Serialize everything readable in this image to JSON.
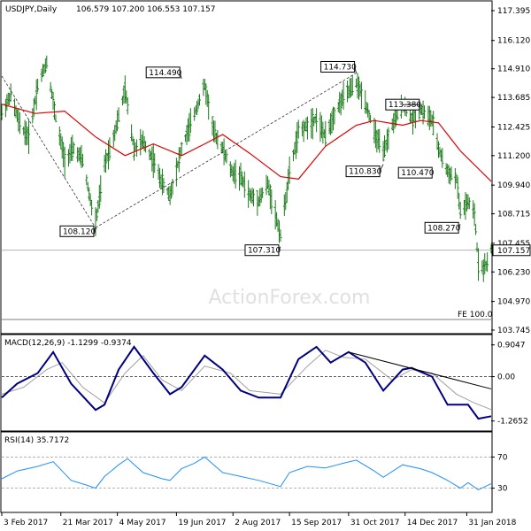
{
  "header": {
    "symbol": "USDJPY,Daily",
    "ohlc": "106.579 107.200 106.553 107.157"
  },
  "watermark": "ActionForex.com",
  "colors": {
    "ma": "#dd0000",
    "macd": "#000080",
    "signal": "#a0a0a0",
    "rsi": "#1e90ff",
    "bars": "#1a7a1a"
  },
  "chart_data": [
    {
      "type": "ohlc",
      "name": "price",
      "title": "USDJPY,Daily",
      "yticks": [
        "117.395",
        "116.120",
        "114.910",
        "113.685",
        "112.425",
        "111.200",
        "109.940",
        "108.715",
        "107.455",
        "106.230",
        "104.970",
        "103.745"
      ],
      "ylim": [
        103.745,
        117.395
      ],
      "current_price": "107.157",
      "fe_label": "FE 100.0",
      "fe_level": 104.2,
      "annotations": [
        {
          "label": "108.120",
          "x": "2017-04-17",
          "y": 108.12
        },
        {
          "label": "114.490",
          "x": "2017-06-23",
          "y": 114.49
        },
        {
          "label": "107.310",
          "x": "2017-09-08",
          "y": 107.31
        },
        {
          "label": "114.730",
          "x": "2017-11-06",
          "y": 114.73
        },
        {
          "label": "110.830",
          "x": "2017-11-27",
          "y": 110.83
        },
        {
          "label": "113.380",
          "x": "2017-12-12",
          "y": 113.38
        },
        {
          "label": "110.470",
          "x": "2018-01-04",
          "y": 110.47
        },
        {
          "label": "108.270",
          "x": "2018-01-26",
          "y": 108.27
        }
      ],
      "price_path": [
        [
          "2017-02-03",
          113.0
        ],
        [
          "2017-02-10",
          113.8
        ],
        [
          "2017-02-17",
          112.5
        ],
        [
          "2017-02-24",
          112.0
        ],
        [
          "2017-03-03",
          114.2
        ],
        [
          "2017-03-10",
          115.2
        ],
        [
          "2017-03-17",
          112.8
        ],
        [
          "2017-03-24",
          111.0
        ],
        [
          "2017-03-31",
          111.5
        ],
        [
          "2017-04-07",
          111.0
        ],
        [
          "2017-04-14",
          109.0
        ],
        [
          "2017-04-17",
          108.3
        ],
        [
          "2017-04-24",
          110.8
        ],
        [
          "2017-05-01",
          112.0
        ],
        [
          "2017-05-10",
          114.0
        ],
        [
          "2017-05-17",
          111.5
        ],
        [
          "2017-05-24",
          111.8
        ],
        [
          "2017-06-01",
          111.0
        ],
        [
          "2017-06-08",
          110.0
        ],
        [
          "2017-06-14",
          109.5
        ],
        [
          "2017-06-23",
          111.5
        ],
        [
          "2017-07-03",
          113.0
        ],
        [
          "2017-07-11",
          114.2
        ],
        [
          "2017-07-18",
          112.2
        ],
        [
          "2017-07-25",
          111.5
        ],
        [
          "2017-08-01",
          110.5
        ],
        [
          "2017-08-08",
          110.3
        ],
        [
          "2017-08-15",
          109.5
        ],
        [
          "2017-08-22",
          109.3
        ],
        [
          "2017-08-29",
          110.0
        ],
        [
          "2017-09-08",
          107.8
        ],
        [
          "2017-09-15",
          110.5
        ],
        [
          "2017-09-22",
          112.2
        ],
        [
          "2017-09-29",
          112.5
        ],
        [
          "2017-10-06",
          112.8
        ],
        [
          "2017-10-13",
          112.0
        ],
        [
          "2017-10-20",
          113.0
        ],
        [
          "2017-10-27",
          113.7
        ],
        [
          "2017-11-06",
          114.3
        ],
        [
          "2017-11-13",
          113.5
        ],
        [
          "2017-11-20",
          112.2
        ],
        [
          "2017-11-27",
          111.3
        ],
        [
          "2017-12-04",
          112.5
        ],
        [
          "2017-12-12",
          113.4
        ],
        [
          "2017-12-19",
          112.8
        ],
        [
          "2017-12-26",
          113.2
        ],
        [
          "2018-01-04",
          112.7
        ],
        [
          "2018-01-09",
          111.5
        ],
        [
          "2018-01-16",
          110.5
        ],
        [
          "2018-01-23",
          110.2
        ],
        [
          "2018-01-26",
          108.8
        ],
        [
          "2018-02-01",
          109.2
        ],
        [
          "2018-02-06",
          108.7
        ],
        [
          "2018-02-09",
          106.6
        ],
        [
          "2018-02-13",
          106.4
        ],
        [
          "2018-02-16",
          106.6
        ],
        [
          "2018-02-19",
          107.157
        ]
      ],
      "ma_path": [
        [
          "2017-02-03",
          113.4
        ],
        [
          "2017-03-01",
          113.0
        ],
        [
          "2017-03-24",
          113.1
        ],
        [
          "2017-04-17",
          112.0
        ],
        [
          "2017-05-10",
          111.2
        ],
        [
          "2017-06-01",
          111.7
        ],
        [
          "2017-06-23",
          111.2
        ],
        [
          "2017-07-11",
          111.7
        ],
        [
          "2017-07-25",
          112.1
        ],
        [
          "2017-08-15",
          111.3
        ],
        [
          "2017-09-08",
          110.3
        ],
        [
          "2017-09-22",
          110.2
        ],
        [
          "2017-10-13",
          111.6
        ],
        [
          "2017-11-06",
          112.5
        ],
        [
          "2017-11-20",
          112.7
        ],
        [
          "2017-12-12",
          112.5
        ],
        [
          "2017-12-26",
          112.7
        ],
        [
          "2018-01-09",
          112.6
        ],
        [
          "2018-01-26",
          111.4
        ],
        [
          "2018-02-19",
          110.1
        ]
      ],
      "trendlines": [
        {
          "from": [
            "2017-02-03",
            114.6
          ],
          "to": [
            "2017-04-17",
            108.12
          ]
        },
        {
          "from": [
            "2017-04-17",
            108.12
          ],
          "to": [
            "2017-11-06",
            114.73
          ]
        }
      ]
    },
    {
      "type": "line",
      "name": "macd",
      "title": "MACD(12,26,9)",
      "values_label": "-1.1299 -0.9374",
      "yticks": [
        "0.9047",
        "0.00",
        "-1.2652"
      ],
      "ylim": [
        -1.5,
        1.15
      ],
      "macd_path": [
        [
          "2017-02-03",
          -0.6
        ],
        [
          "2017-02-15",
          -0.2
        ],
        [
          "2017-03-03",
          0.1
        ],
        [
          "2017-03-15",
          0.7
        ],
        [
          "2017-03-29",
          -0.2
        ],
        [
          "2017-04-17",
          -0.95
        ],
        [
          "2017-04-24",
          -0.8
        ],
        [
          "2017-05-05",
          0.2
        ],
        [
          "2017-05-17",
          0.85
        ],
        [
          "2017-06-01",
          0.1
        ],
        [
          "2017-06-14",
          -0.5
        ],
        [
          "2017-06-23",
          -0.3
        ],
        [
          "2017-07-11",
          0.6
        ],
        [
          "2017-07-25",
          0.2
        ],
        [
          "2017-08-08",
          -0.4
        ],
        [
          "2017-08-22",
          -0.6
        ],
        [
          "2017-09-08",
          -0.6
        ],
        [
          "2017-09-22",
          0.5
        ],
        [
          "2017-10-06",
          0.85
        ],
        [
          "2017-10-17",
          0.4
        ],
        [
          "2017-10-31",
          0.7
        ],
        [
          "2017-11-13",
          0.4
        ],
        [
          "2017-11-27",
          -0.4
        ],
        [
          "2017-12-12",
          0.2
        ],
        [
          "2017-12-19",
          0.25
        ],
        [
          "2018-01-04",
          0.0
        ],
        [
          "2018-01-16",
          -0.8
        ],
        [
          "2018-01-23",
          -0.8
        ],
        [
          "2018-02-01",
          -0.8
        ],
        [
          "2018-02-09",
          -1.2
        ],
        [
          "2018-02-19",
          -1.13
        ]
      ],
      "signal_path": [
        [
          "2017-02-03",
          -0.5
        ],
        [
          "2017-02-20",
          -0.3
        ],
        [
          "2017-03-10",
          0.2
        ],
        [
          "2017-03-22",
          0.4
        ],
        [
          "2017-04-07",
          -0.3
        ],
        [
          "2017-04-24",
          -0.75
        ],
        [
          "2017-05-10",
          0.1
        ],
        [
          "2017-05-24",
          0.6
        ],
        [
          "2017-06-08",
          -0.1
        ],
        [
          "2017-06-23",
          -0.4
        ],
        [
          "2017-07-11",
          0.3
        ],
        [
          "2017-07-31",
          0.1
        ],
        [
          "2017-08-15",
          -0.4
        ],
        [
          "2017-09-08",
          -0.5
        ],
        [
          "2017-09-29",
          0.3
        ],
        [
          "2017-10-13",
          0.75
        ],
        [
          "2017-10-27",
          0.55
        ],
        [
          "2017-11-13",
          0.5
        ],
        [
          "2017-12-04",
          -0.1
        ],
        [
          "2017-12-19",
          0.2
        ],
        [
          "2018-01-04",
          0.1
        ],
        [
          "2018-01-23",
          -0.5
        ],
        [
          "2018-02-06",
          -0.75
        ],
        [
          "2018-02-19",
          -0.94
        ]
      ],
      "trendline": {
        "from": [
          "2017-10-31",
          0.7
        ],
        "to": [
          "2018-02-19",
          -0.35
        ]
      }
    },
    {
      "type": "line",
      "name": "rsi",
      "title": "RSI(14)",
      "value_label": "35.7172",
      "yticks": [
        "70",
        "30"
      ],
      "ylim": [
        0,
        100
      ],
      "rsi_path": [
        [
          "2017-02-03",
          42
        ],
        [
          "2017-02-15",
          52
        ],
        [
          "2017-03-03",
          58
        ],
        [
          "2017-03-15",
          64
        ],
        [
          "2017-03-29",
          40
        ],
        [
          "2017-04-10",
          34
        ],
        [
          "2017-04-17",
          30
        ],
        [
          "2017-04-24",
          45
        ],
        [
          "2017-05-05",
          60
        ],
        [
          "2017-05-12",
          68
        ],
        [
          "2017-05-24",
          50
        ],
        [
          "2017-06-08",
          42
        ],
        [
          "2017-06-14",
          40
        ],
        [
          "2017-06-23",
          55
        ],
        [
          "2017-07-03",
          62
        ],
        [
          "2017-07-11",
          70
        ],
        [
          "2017-07-25",
          50
        ],
        [
          "2017-08-08",
          45
        ],
        [
          "2017-08-22",
          40
        ],
        [
          "2017-09-08",
          32
        ],
        [
          "2017-09-15",
          50
        ],
        [
          "2017-09-29",
          58
        ],
        [
          "2017-10-13",
          56
        ],
        [
          "2017-10-27",
          62
        ],
        [
          "2017-11-06",
          66
        ],
        [
          "2017-11-20",
          52
        ],
        [
          "2017-11-27",
          44
        ],
        [
          "2017-12-12",
          60
        ],
        [
          "2017-12-26",
          55
        ],
        [
          "2018-01-04",
          50
        ],
        [
          "2018-01-16",
          40
        ],
        [
          "2018-01-26",
          30
        ],
        [
          "2018-02-01",
          37
        ],
        [
          "2018-02-09",
          28
        ],
        [
          "2018-02-19",
          35.7
        ]
      ]
    }
  ],
  "xaxis": {
    "ticks": [
      {
        "label": "3 Feb 2017",
        "date": "2017-02-03"
      },
      {
        "label": "21 Mar 2017",
        "date": "2017-03-21"
      },
      {
        "label": "4 May 2017",
        "date": "2017-05-04"
      },
      {
        "label": "19 Jun 2017",
        "date": "2017-06-19"
      },
      {
        "label": "2 Aug 2017",
        "date": "2017-08-02"
      },
      {
        "label": "15 Sep 2017",
        "date": "2017-09-15"
      },
      {
        "label": "31 Oct 2017",
        "date": "2017-10-31"
      },
      {
        "label": "14 Dec 2017",
        "date": "2017-12-14"
      },
      {
        "label": "31 Jan 2018",
        "date": "2018-01-31"
      }
    ],
    "range": [
      "2017-02-03",
      "2018-02-19"
    ]
  }
}
